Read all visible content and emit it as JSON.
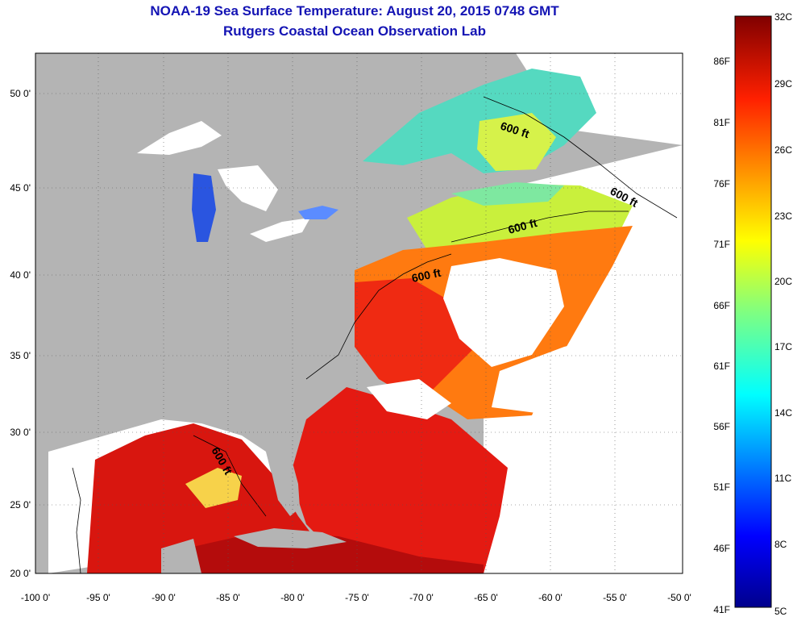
{
  "title": "NOAA-19 Sea Surface Temperature:  August 20, 2015 0748 GMT",
  "subtitle": "Rutgers Coastal Ocean Observation Lab",
  "lon_ticks": [
    "-100 0'",
    "-95 0'",
    "-90 0'",
    "-85 0'",
    "-80 0'",
    "-75 0'",
    "-70 0'",
    "-65 0'",
    "-60 0'",
    "-55 0'",
    "-50 0'"
  ],
  "lat_ticks": [
    "50 0'",
    "45 0'",
    "40 0'",
    "35 0'",
    "30 0'",
    "25 0'",
    "20 0'"
  ],
  "contour_label": "600 ft",
  "colorbar": {
    "celsius": [
      "32C",
      "29C",
      "26C",
      "23C",
      "20C",
      "17C",
      "14C",
      "11C",
      "8C",
      "5C"
    ],
    "fahrenheit": [
      "86F",
      "81F",
      "76F",
      "71F",
      "66F",
      "61F",
      "56F",
      "51F",
      "46F",
      "41F"
    ]
  },
  "colors": {
    "title": "#1414b4",
    "land": "#b4b4b4",
    "cloud": "#ffffff"
  }
}
